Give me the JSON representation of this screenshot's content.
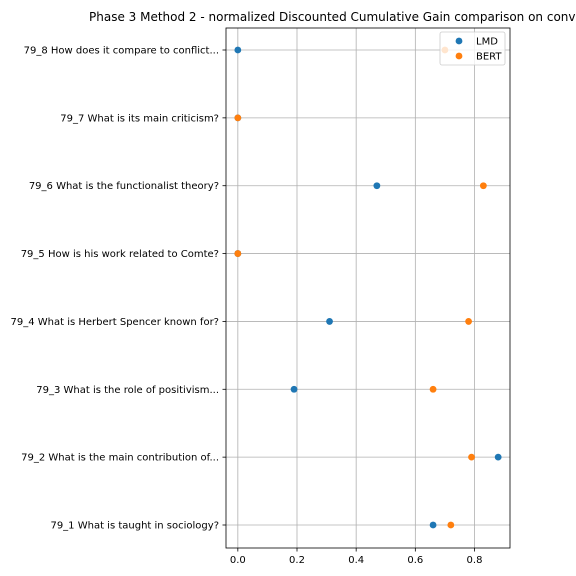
{
  "chart_data": {
    "type": "scatter",
    "title": "Phase 3 Method 2 - normalized Discounted Cumulative Gain comparison on conv",
    "xlabel": "",
    "ylabel": "",
    "xlim": [
      -0.04,
      0.92
    ],
    "xticks": [
      0.0,
      0.2,
      0.4,
      0.6,
      0.8
    ],
    "xtick_labels": [
      "0.0",
      "0.2",
      "0.4",
      "0.6",
      "0.8"
    ],
    "categories": [
      "79_1 What is taught in sociology?",
      "79_2 What is the main contribution of...",
      "79_3 What is the role of positivism...",
      "79_4 What is Herbert Spencer known for?",
      "79_5 How is his work related to Comte?",
      "79_6 What is the functionalist theory?",
      "79_7 What is its main criticism?",
      "79_8 How does it compare to conflict..."
    ],
    "grid": true,
    "legend_position": "top-right",
    "series": [
      {
        "name": "LMD",
        "color": "#1f77b4",
        "values": [
          0.66,
          0.88,
          0.19,
          0.31,
          0.0,
          0.47,
          0.0,
          0.0
        ]
      },
      {
        "name": "BERT",
        "color": "#ff7f0e",
        "values": [
          0.72,
          0.79,
          0.66,
          0.78,
          0.0,
          0.83,
          0.0,
          0.7
        ]
      }
    ]
  }
}
